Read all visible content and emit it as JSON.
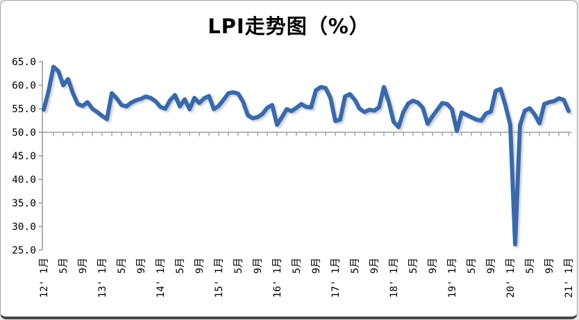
{
  "page": {
    "background": "#ffffff",
    "frame_border_color": "#a3a3a3",
    "bottom_edge_color": "#454545"
  },
  "chart_data": {
    "type": "line",
    "title": "LPI走势图（%）",
    "title_color": "#000000",
    "grid": false,
    "legend": false,
    "x_unit": "month",
    "x_start": "2012-01",
    "x_end": "2021-01",
    "months_total": 109,
    "x_label_every_n_months": 4,
    "x_minor_tick_every_n_months": 2,
    "x_tick_labels": [
      "12' 1月",
      "5月",
      "9月",
      "13' 1月",
      "5月",
      "9月",
      "14' 1月",
      "5月",
      "9月",
      "15' 1月",
      "5月",
      "9月",
      "16' 1月",
      "5月",
      "9月",
      "17' 1月",
      "5月",
      "9月",
      "18' 1月",
      "5月",
      "9月",
      "19' 1月",
      "5月",
      "9月",
      "20' 1月",
      "5月",
      "9月",
      "21' 1月"
    ],
    "ylim": [
      25,
      65
    ],
    "y_tick_labels": [
      "65.0",
      "60.0",
      "55.0",
      "50.0",
      "45.0",
      "40.0",
      "35.0",
      "30.0",
      "25.0"
    ],
    "y_tick_values": [
      65,
      60,
      55,
      50,
      45,
      40,
      35,
      30,
      25
    ],
    "x_axis_cross_value": 50,
    "axis_color": "#9c9c9c",
    "tick_label_color": "#000000",
    "series": [
      {
        "name": "LPI",
        "color": "#3a68a8",
        "shadow_color": "#b9c9e0",
        "values": [
          54.8,
          58.8,
          63.9,
          63.0,
          60.0,
          61.3,
          58.3,
          56.0,
          55.6,
          56.4,
          55.0,
          54.3,
          53.5,
          52.8,
          58.3,
          57.2,
          55.8,
          55.5,
          56.3,
          56.8,
          57.1,
          57.6,
          57.3,
          56.6,
          55.4,
          55.0,
          56.8,
          57.9,
          55.5,
          57.0,
          54.9,
          57.3,
          56.2,
          57.2,
          57.7,
          54.9,
          55.6,
          56.9,
          58.3,
          58.5,
          58.2,
          56.5,
          53.6,
          53.0,
          53.2,
          53.9,
          55.2,
          55.8,
          51.6,
          53.2,
          54.9,
          54.5,
          55.2,
          56.0,
          55.4,
          55.3,
          58.9,
          59.6,
          59.4,
          57.3,
          52.4,
          52.7,
          57.6,
          58.1,
          56.9,
          55.0,
          54.3,
          54.8,
          54.6,
          55.3,
          59.6,
          56.4,
          52.2,
          51.1,
          54.3,
          56.1,
          56.7,
          56.3,
          55.2,
          51.8,
          53.4,
          54.8,
          56.2,
          56.0,
          54.9,
          50.3,
          54.2,
          53.7,
          53.2,
          52.7,
          52.5,
          54.0,
          54.4,
          58.8,
          59.2,
          55.7,
          51.6,
          26.2,
          51.5,
          54.6,
          55.1,
          53.8,
          51.9,
          56.0,
          56.4,
          56.6,
          57.2,
          56.9,
          54.5
        ]
      }
    ]
  }
}
